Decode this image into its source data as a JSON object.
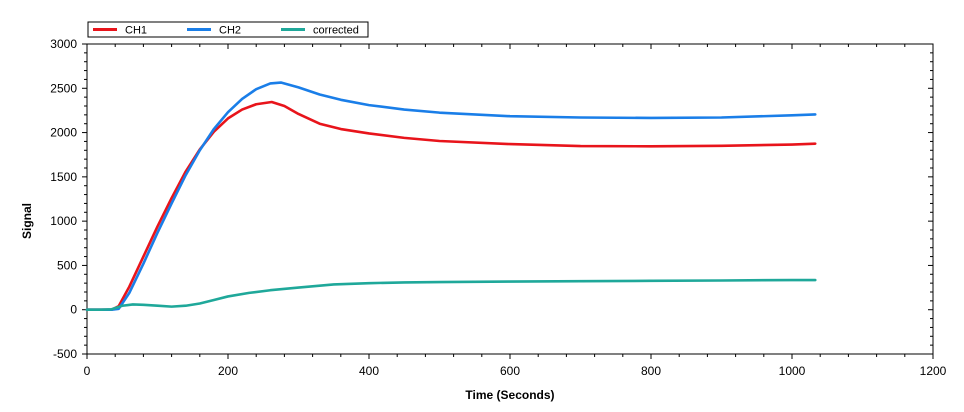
{
  "chart_data": {
    "type": "line",
    "title": "",
    "xlabel": "Time (Seconds)",
    "ylabel": "Signal",
    "xlim": [
      0,
      1200
    ],
    "ylim": [
      -500,
      3000
    ],
    "x_ticks": [
      0,
      200,
      400,
      600,
      800,
      1000,
      1200
    ],
    "y_ticks": [
      -500,
      0,
      500,
      1000,
      1500,
      2000,
      2500,
      3000
    ],
    "legend_position": "top-left",
    "grid": false,
    "series": [
      {
        "name": "CH1",
        "color": "#e8141b",
        "points": [
          [
            0,
            0
          ],
          [
            20,
            0
          ],
          [
            35,
            0
          ],
          [
            45,
            40
          ],
          [
            60,
            260
          ],
          [
            80,
            600
          ],
          [
            100,
            940
          ],
          [
            120,
            1260
          ],
          [
            140,
            1560
          ],
          [
            160,
            1810
          ],
          [
            180,
            2010
          ],
          [
            200,
            2160
          ],
          [
            220,
            2260
          ],
          [
            240,
            2320
          ],
          [
            262,
            2345
          ],
          [
            280,
            2300
          ],
          [
            300,
            2210
          ],
          [
            330,
            2100
          ],
          [
            360,
            2040
          ],
          [
            400,
            1990
          ],
          [
            450,
            1940
          ],
          [
            500,
            1905
          ],
          [
            600,
            1870
          ],
          [
            700,
            1848
          ],
          [
            800,
            1845
          ],
          [
            900,
            1850
          ],
          [
            1000,
            1865
          ],
          [
            1033,
            1875
          ]
        ]
      },
      {
        "name": "CH2",
        "color": "#1a7ee8",
        "points": [
          [
            0,
            0
          ],
          [
            20,
            0
          ],
          [
            35,
            0
          ],
          [
            45,
            10
          ],
          [
            60,
            190
          ],
          [
            80,
            520
          ],
          [
            100,
            870
          ],
          [
            120,
            1200
          ],
          [
            140,
            1520
          ],
          [
            160,
            1800
          ],
          [
            180,
            2040
          ],
          [
            200,
            2230
          ],
          [
            220,
            2380
          ],
          [
            240,
            2490
          ],
          [
            260,
            2555
          ],
          [
            275,
            2565
          ],
          [
            300,
            2510
          ],
          [
            330,
            2430
          ],
          [
            360,
            2370
          ],
          [
            400,
            2310
          ],
          [
            450,
            2260
          ],
          [
            500,
            2225
          ],
          [
            600,
            2185
          ],
          [
            700,
            2170
          ],
          [
            800,
            2165
          ],
          [
            900,
            2170
          ],
          [
            1000,
            2195
          ],
          [
            1033,
            2205
          ]
        ]
      },
      {
        "name": "corrected",
        "color": "#1fa89a",
        "points": [
          [
            0,
            0
          ],
          [
            20,
            0
          ],
          [
            35,
            5
          ],
          [
            50,
            45
          ],
          [
            65,
            60
          ],
          [
            80,
            55
          ],
          [
            100,
            45
          ],
          [
            120,
            35
          ],
          [
            140,
            45
          ],
          [
            160,
            70
          ],
          [
            180,
            110
          ],
          [
            200,
            150
          ],
          [
            230,
            190
          ],
          [
            260,
            220
          ],
          [
            300,
            250
          ],
          [
            350,
            285
          ],
          [
            400,
            300
          ],
          [
            450,
            308
          ],
          [
            500,
            312
          ],
          [
            600,
            318
          ],
          [
            700,
            322
          ],
          [
            800,
            326
          ],
          [
            900,
            330
          ],
          [
            1000,
            335
          ],
          [
            1033,
            335
          ]
        ]
      }
    ]
  }
}
